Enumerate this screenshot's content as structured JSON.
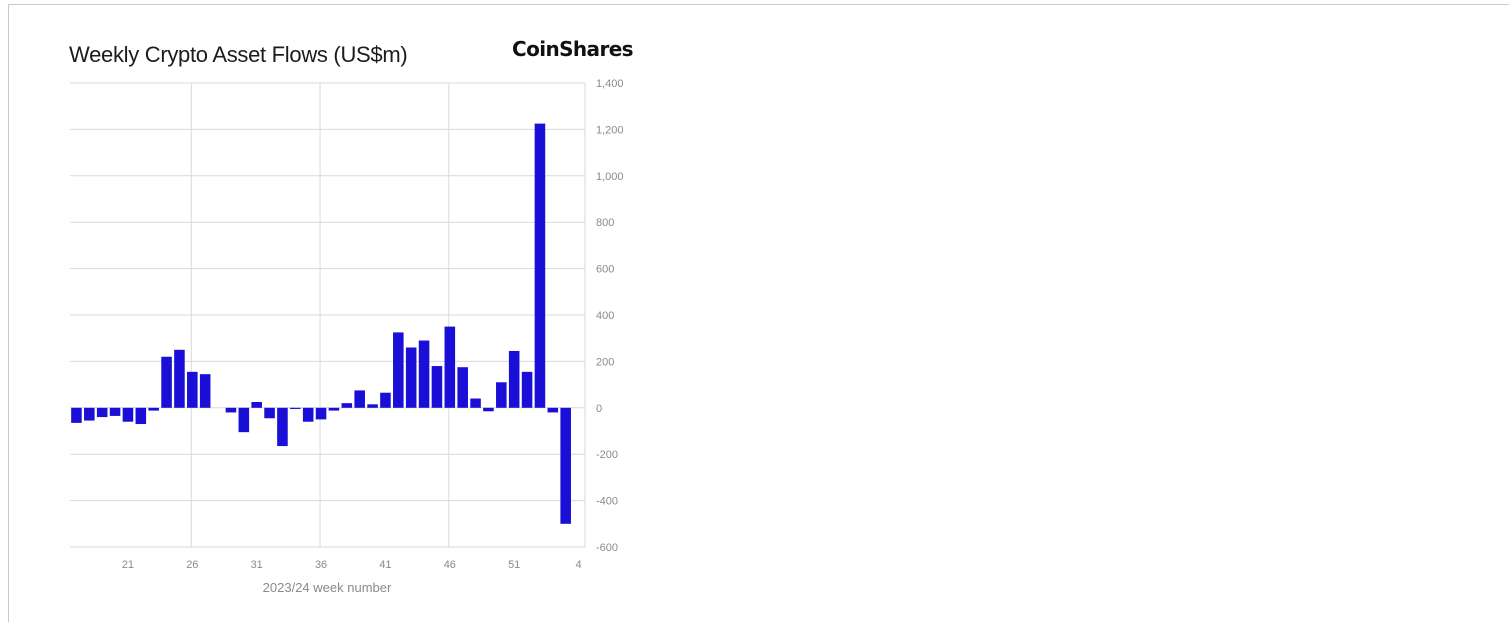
{
  "brand": "CoinShares",
  "chart_data": {
    "type": "bar",
    "title": "Weekly Crypto Asset Flows (US$m)",
    "xlabel": "2023/24 week number",
    "ylabel": "",
    "ylim": [
      -600,
      1400
    ],
    "yticks": [
      1400,
      1200,
      1000,
      800,
      600,
      400,
      200,
      0,
      -200,
      -400,
      -600
    ],
    "ytick_labels": [
      "1,400",
      "1,200",
      "1,000",
      "800",
      "600",
      "400",
      "200",
      "0",
      "-200",
      "-400",
      "-600"
    ],
    "xtick_labels": [
      "21",
      "26",
      "31",
      "36",
      "41",
      "46",
      "51",
      "4"
    ],
    "grid": true,
    "bar_color": "#1a0fd6",
    "categories": [
      "17",
      "18",
      "19",
      "20",
      "21",
      "22",
      "23",
      "24",
      "25",
      "26",
      "27",
      "28",
      "29",
      "30",
      "31",
      "32",
      "33",
      "34",
      "35",
      "36",
      "37",
      "38",
      "39",
      "40",
      "41",
      "42",
      "43",
      "44",
      "45",
      "46",
      "47",
      "48",
      "49",
      "50",
      "51",
      "52",
      "1",
      "2",
      "3",
      "4"
    ],
    "values": [
      -65,
      -55,
      -40,
      -35,
      -60,
      -70,
      -12,
      220,
      250,
      155,
      145,
      0,
      -20,
      -105,
      25,
      -45,
      -165,
      -5,
      -60,
      -50,
      -12,
      20,
      75,
      15,
      65,
      325,
      260,
      290,
      180,
      350,
      175,
      40,
      -15,
      110,
      245,
      155,
      1225,
      -20,
      -500,
      0
    ]
  }
}
